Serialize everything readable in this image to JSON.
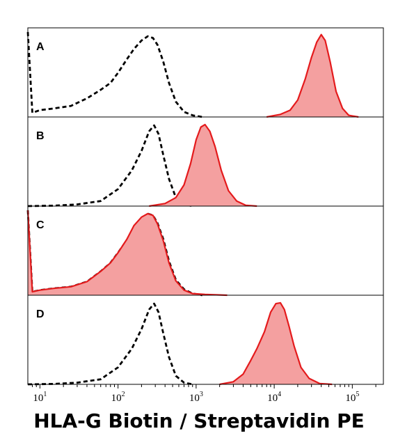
{
  "chart_data": {
    "type": "area",
    "xlabel": "HLA-G Biotin / Streptavidin PE",
    "xscale": "log",
    "xlim": [
      7,
      250000
    ],
    "ylim": [
      0,
      1
    ],
    "xticks": [
      {
        "value": 10,
        "base": "10",
        "exp": "1"
      },
      {
        "value": 100,
        "base": "10",
        "exp": "2"
      },
      {
        "value": 1000,
        "base": "10",
        "exp": "3"
      },
      {
        "value": 10000,
        "base": "10",
        "exp": "4"
      },
      {
        "value": 100000,
        "base": "10",
        "exp": "5"
      }
    ],
    "colors": {
      "control_line": "#000000",
      "stained_line": "#e41a1c",
      "stained_fill": "#f4a0a0"
    },
    "panels": [
      {
        "label": "A",
        "series": [
          {
            "style": "control",
            "x": [
              7,
              8,
              10,
              15,
              25,
              40,
              60,
              80,
              100,
              130,
              160,
              200,
              240,
              280,
              320,
              380,
              450,
              550,
              700,
              900,
              1200
            ],
            "y": [
              1.0,
              0.05,
              0.08,
              0.1,
              0.13,
              0.22,
              0.32,
              0.4,
              0.52,
              0.68,
              0.8,
              0.9,
              0.95,
              0.93,
              0.85,
              0.65,
              0.4,
              0.18,
              0.06,
              0.02,
              0.0
            ]
          },
          {
            "style": "stained",
            "x": [
              8000,
              12000,
              16000,
              20000,
              25000,
              30000,
              35000,
              40000,
              45000,
              52000,
              62000,
              75000,
              90000,
              120000
            ],
            "y": [
              0.0,
              0.03,
              0.08,
              0.2,
              0.45,
              0.7,
              0.88,
              0.97,
              0.9,
              0.65,
              0.3,
              0.1,
              0.02,
              0.0
            ]
          }
        ]
      },
      {
        "label": "B",
        "series": [
          {
            "style": "control",
            "x": [
              7,
              15,
              30,
              60,
              100,
              150,
              200,
              250,
              290,
              330,
              380,
              450,
              550,
              700,
              900
            ],
            "y": [
              0.0,
              0.005,
              0.02,
              0.06,
              0.2,
              0.42,
              0.65,
              0.88,
              0.95,
              0.85,
              0.6,
              0.32,
              0.1,
              0.02,
              0.0
            ]
          },
          {
            "style": "stained",
            "x": [
              250,
              400,
              550,
              700,
              850,
              1000,
              1150,
              1300,
              1500,
              1750,
              2100,
              2600,
              3300,
              4300,
              6000
            ],
            "y": [
              0.0,
              0.03,
              0.1,
              0.25,
              0.5,
              0.78,
              0.93,
              0.96,
              0.88,
              0.7,
              0.42,
              0.18,
              0.06,
              0.01,
              0.0
            ]
          }
        ]
      },
      {
        "label": "C",
        "series": [
          {
            "style": "control",
            "x": [
              7,
              8,
              10,
              15,
              25,
              40,
              60,
              80,
              100,
              130,
              160,
              200,
              240,
              280,
              320,
              380,
              450,
              550,
              700,
              900,
              1200
            ],
            "y": [
              1.0,
              0.04,
              0.06,
              0.08,
              0.1,
              0.16,
              0.28,
              0.38,
              0.5,
              0.65,
              0.8,
              0.9,
              0.96,
              0.94,
              0.85,
              0.66,
              0.4,
              0.18,
              0.07,
              0.02,
              0.0
            ]
          },
          {
            "style": "stained",
            "x": [
              7,
              8,
              10,
              15,
              25,
              40,
              60,
              80,
              100,
              130,
              160,
              200,
              240,
              280,
              320,
              380,
              450,
              550,
              700,
              900,
              1300,
              2500
            ],
            "y": [
              1.0,
              0.04,
              0.06,
              0.08,
              0.1,
              0.16,
              0.28,
              0.38,
              0.5,
              0.66,
              0.82,
              0.92,
              0.96,
              0.94,
              0.84,
              0.64,
              0.38,
              0.17,
              0.06,
              0.02,
              0.01,
              0.0
            ]
          }
        ]
      },
      {
        "label": "D",
        "series": [
          {
            "style": "control",
            "x": [
              7,
              15,
              30,
              60,
              100,
              150,
              200,
              250,
              290,
              330,
              380,
              450,
              550,
              700,
              900
            ],
            "y": [
              0.0,
              0.005,
              0.02,
              0.06,
              0.2,
              0.42,
              0.65,
              0.88,
              0.95,
              0.85,
              0.6,
              0.32,
              0.1,
              0.02,
              0.0
            ]
          },
          {
            "style": "stained",
            "x": [
              2000,
              3000,
              4000,
              5000,
              6000,
              7500,
              9000,
              10500,
              12000,
              13500,
              15500,
              18000,
              22000,
              28000,
              38000,
              55000
            ],
            "y": [
              0.0,
              0.03,
              0.12,
              0.28,
              0.42,
              0.62,
              0.85,
              0.95,
              0.96,
              0.88,
              0.68,
              0.45,
              0.2,
              0.07,
              0.01,
              0.0
            ]
          }
        ]
      }
    ]
  }
}
